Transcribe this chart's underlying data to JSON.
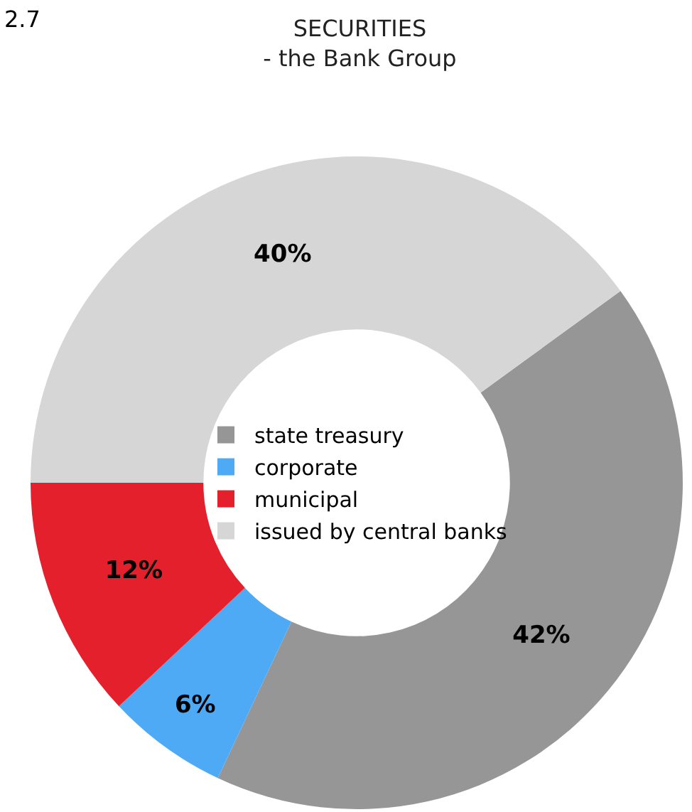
{
  "chart_data": {
    "type": "donut",
    "title": "SECURITIES",
    "subtitle": "- the Bank Group",
    "annotations": [
      "2.7"
    ],
    "categories": [
      "state treasury",
      "corporate",
      "municipal",
      "issued by central banks"
    ],
    "values": [
      42,
      6,
      12,
      40
    ],
    "value_labels": [
      "42%",
      "6%",
      "12%",
      "40%"
    ],
    "colors": [
      "#969696",
      "#4faaf5",
      "#e3202b",
      "#d6d6d6"
    ],
    "legend": "center"
  }
}
